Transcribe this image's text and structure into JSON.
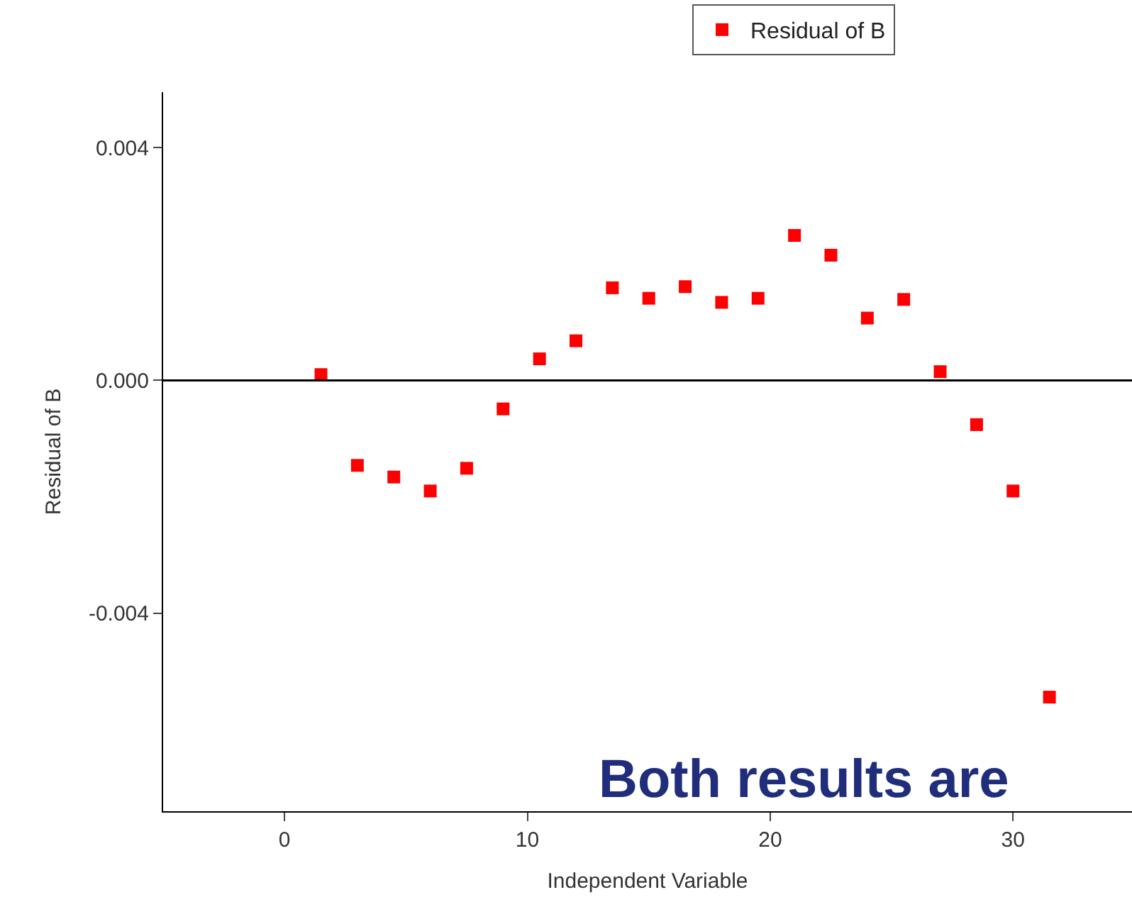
{
  "chart_data": {
    "type": "scatter",
    "xlabel": "Independent Variable",
    "ylabel": "Residual of B",
    "x": [
      1.5,
      3,
      4.5,
      6,
      7.5,
      9,
      10.5,
      12,
      13.5,
      15,
      16.5,
      18,
      19.5,
      21,
      22.5,
      24,
      25.5,
      27,
      28.5,
      30,
      31.5
    ],
    "series": [
      {
        "name": "Residual of B",
        "color": "#ff0000",
        "values": [
          0.0001,
          -0.00146,
          -0.00166,
          -0.0019,
          -0.00151,
          -0.00049,
          0.00037,
          0.00068,
          0.00159,
          0.00141,
          0.00161,
          0.00134,
          0.00141,
          0.00249,
          0.00215,
          0.00107,
          0.00139,
          0.00015,
          -0.00076,
          -0.0019,
          -0.00544
        ]
      }
    ],
    "xlim": [
      -5,
      34.9
    ],
    "xticks": [
      0,
      10,
      20,
      30
    ],
    "ylim": [
      -0.0074,
      0.00495
    ],
    "yticks": [
      {
        "value": -0.004,
        "label": "-0.004"
      },
      {
        "value": 0,
        "label": "0.000"
      },
      {
        "value": 0.004,
        "label": "0.004"
      }
    ],
    "ref_lines": [
      {
        "axis": "y",
        "value": 0,
        "color": "#000000"
      }
    ],
    "annotations": [
      "Both results are"
    ],
    "marker": "square",
    "legend": "top right"
  }
}
